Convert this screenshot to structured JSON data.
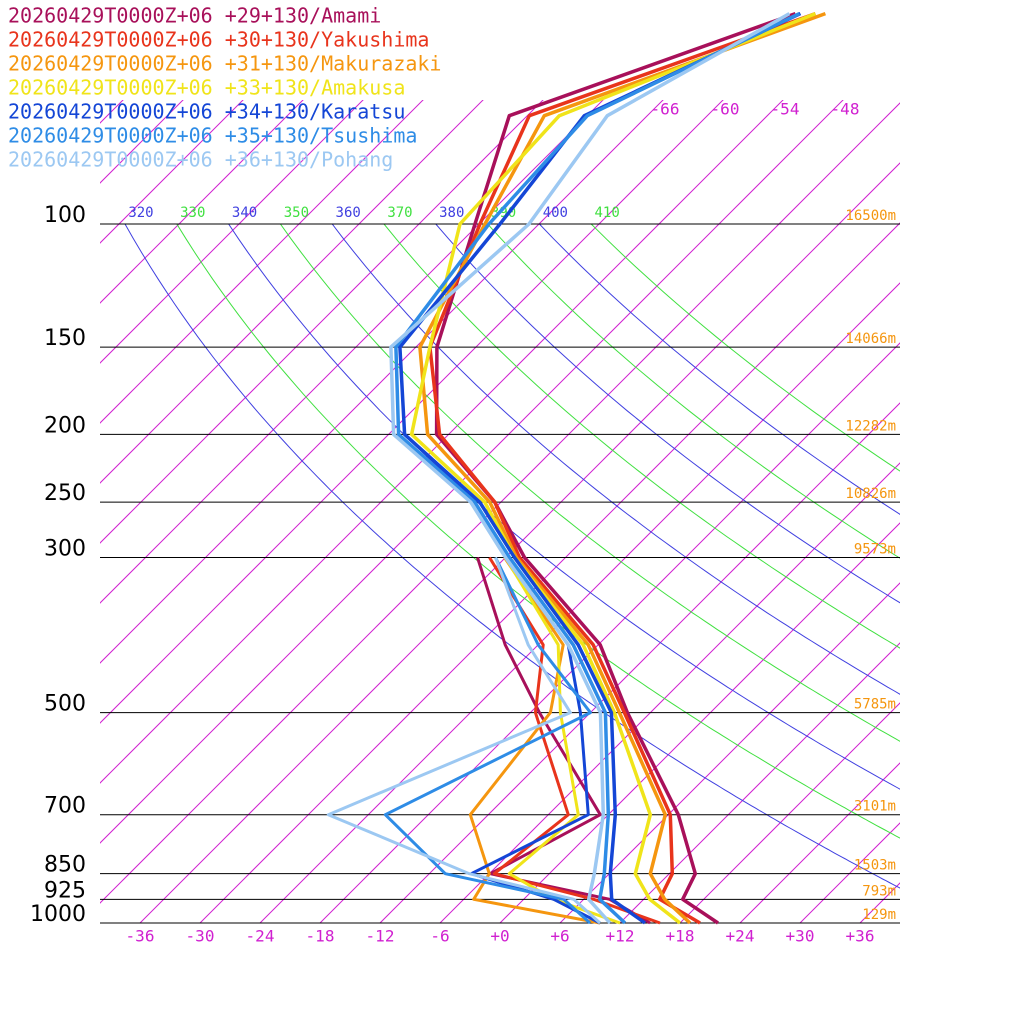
{
  "chart_data": {
    "type": "skewt",
    "levels": [
      1000,
      925,
      850,
      700,
      500,
      400,
      300,
      250,
      200,
      150,
      100,
      70,
      50
    ],
    "dewpoint_levels": [
      1000,
      925,
      850,
      700,
      500,
      400,
      300
    ],
    "series": [
      {
        "name": "20260429T0000Z+06 +29+130/Amami",
        "color": "#a8105a",
        "temperature": [
          21.8,
          15.9,
          14.6,
          7,
          -8.3,
          -17.8,
          -34.1,
          -42.6,
          -55.2,
          -63.9,
          -72.4,
          -79.8,
          -61.4
        ],
        "dewpoint": [
          15,
          8.6,
          -5.9,
          -0.8,
          -17.1,
          -27.3,
          -38.8
        ]
      },
      {
        "name": "20260429T0000Z+06 +30+130/Yakushima",
        "color": "#e8341c",
        "temperature": [
          20,
          13.6,
          12.3,
          6.2,
          -8.6,
          -18.5,
          -34.6,
          -42.6,
          -54.9,
          -64.6,
          -71.9,
          -77.8,
          -59.4
        ],
        "dewpoint": [
          16,
          7,
          -5.5,
          -4,
          -17.5,
          -23.5,
          -37.6
        ]
      },
      {
        "name": "20260429T0000Z+06 +31+130/Makurazaki",
        "color": "#f5960f",
        "temperature": [
          19,
          14.1,
          10.1,
          5.7,
          -9.1,
          -19,
          -34.9,
          -43.1,
          -56.1,
          -65.6,
          -71.4,
          -76.3,
          -58.4
        ],
        "dewpoint": [
          10,
          -5,
          -6,
          -13.8,
          -16,
          -21.5,
          -36.1
        ]
      },
      {
        "name": "20260429T0000Z+06 +33+130/Amakusa",
        "color": "#f0e41a",
        "temperature": [
          18,
          12.6,
          8.6,
          4.2,
          -9.6,
          -19.5,
          -35.1,
          -43.6,
          -57.7,
          -64.6,
          -73.9,
          -74.8,
          -59.4
        ],
        "dewpoint": [
          12,
          3,
          -4,
          -3,
          -15,
          -22,
          -36
        ]
      },
      {
        "name": "20260429T0000Z+06 +34+130/Karatsu",
        "color": "#1446d6",
        "temperature": [
          14.5,
          8.8,
          6.1,
          0.7,
          -9.9,
          -20,
          -35.1,
          -44.1,
          -58.4,
          -67.6,
          -69.9,
          -72.3,
          -60.9
        ],
        "dewpoint": [
          10,
          3,
          -7.8,
          -2,
          -13,
          -21,
          -36
        ]
      },
      {
        "name": "20260429T0000Z+06 +35+130/Tsushima",
        "color": "#2e8ce6",
        "temperature": [
          12.5,
          7.6,
          5.5,
          0,
          -10.5,
          -20.5,
          -35.6,
          -44.6,
          -59,
          -68,
          -71,
          -72,
          -61
        ],
        "dewpoint": [
          9,
          4,
          -10.4,
          -22.3,
          -12,
          -24,
          -37
        ]
      },
      {
        "name": "20260429T0000Z+06 +36+130/Pohang",
        "color": "#9cc8f2",
        "temperature": [
          11,
          6.5,
          4.5,
          -0.5,
          -11,
          -21,
          -36,
          -45,
          -59.5,
          -68.5,
          -67,
          -70,
          -62
        ],
        "dewpoint": [
          10,
          5,
          -8,
          -28,
          -14,
          -25,
          -37
        ]
      }
    ],
    "log_scale": true,
    "ylim": [
      1000,
      100
    ],
    "yticks": [
      100,
      150,
      200,
      250,
      300,
      500,
      700,
      850,
      925,
      1000
    ],
    "xlim": [
      -40,
      40
    ],
    "xticks": [
      -36,
      -30,
      -24,
      -18,
      -12,
      -6,
      {
        "value": 0,
        "label": "+0"
      },
      {
        "value": 6,
        "label": "+6"
      },
      {
        "value": 12,
        "label": "+12"
      },
      {
        "value": 18,
        "label": "+18"
      },
      {
        "value": 24,
        "label": "+24"
      },
      {
        "value": 30,
        "label": "+30"
      },
      {
        "value": 36,
        "label": "+36"
      }
    ],
    "isotherm_color": "#d020d0",
    "isotherm_labels": [
      -66,
      -60,
      -54,
      -48
    ],
    "theta_labels": [
      320,
      330,
      340,
      350,
      360,
      370,
      380,
      390,
      400,
      410
    ],
    "theta_colors": [
      "#4040e0",
      "#40e040"
    ],
    "height_color": "#f5960f",
    "height_labels": [
      {
        "level": 100,
        "label": "16500m"
      },
      {
        "level": 150,
        "label": "14066m"
      },
      {
        "level": 200,
        "label": "12282m"
      },
      {
        "level": 250,
        "label": "10826m"
      },
      {
        "level": 300,
        "label": "9573m"
      },
      {
        "level": 500,
        "label": "5785m"
      },
      {
        "level": 700,
        "label": "3101m"
      },
      {
        "level": 850,
        "label": "1503m"
      },
      {
        "level": 925,
        "label": "793m"
      },
      {
        "level": 1000,
        "label": "129m"
      }
    ]
  }
}
